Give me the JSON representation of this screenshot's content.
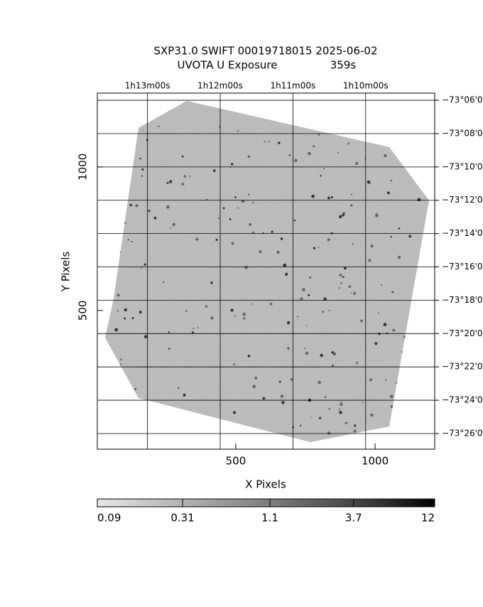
{
  "chart_data": {
    "type": "image",
    "title": "SXP31.0 SWIFT 00019718015 2025-06-02",
    "subtitle": "UVOTA U Exposure",
    "exposure": "359s",
    "xlabel": "X Pixels",
    "ylabel": "Y Pixels",
    "xlim": [
      3,
      1214
    ],
    "ylim": [
      17,
      1257
    ],
    "xticks": [
      500,
      1000
    ],
    "yticks": [
      500,
      1000
    ],
    "x2lim": [
      73.69,
      69.05
    ],
    "x2ticks": [
      {
        "value": 73,
        "label": "1h13m00s"
      },
      {
        "value": 72,
        "label": "1h12m00s"
      },
      {
        "value": 71,
        "label": "1h11m00s"
      },
      {
        "value": 70,
        "label": "1h10m00s"
      }
    ],
    "y2lim": [
      -4406.94,
      -4385.57
    ],
    "y2ticks": [
      {
        "value": -4386,
        "label": "−73°06'0"
      },
      {
        "value": -4388,
        "label": "−73°08'0"
      },
      {
        "value": -4390,
        "label": "−73°10'0"
      },
      {
        "value": -4392,
        "label": "−73°12'0"
      },
      {
        "value": -4394,
        "label": "−73°14'0"
      },
      {
        "value": -4396,
        "label": "−73°16'0"
      },
      {
        "value": -4398,
        "label": "−73°18'0"
      },
      {
        "value": -4400,
        "label": "−73°20'0"
      },
      {
        "value": -4402,
        "label": "−73°22'0"
      },
      {
        "value": -4404,
        "label": "−73°24'0"
      },
      {
        "value": -4406,
        "label": "−73°26'0"
      }
    ],
    "grid": true,
    "colorbar": {
      "lim": [
        0.09,
        12
      ],
      "log": true,
      "ticks": [
        0.09,
        0.31,
        1.1,
        3.7,
        12
      ]
    }
  }
}
